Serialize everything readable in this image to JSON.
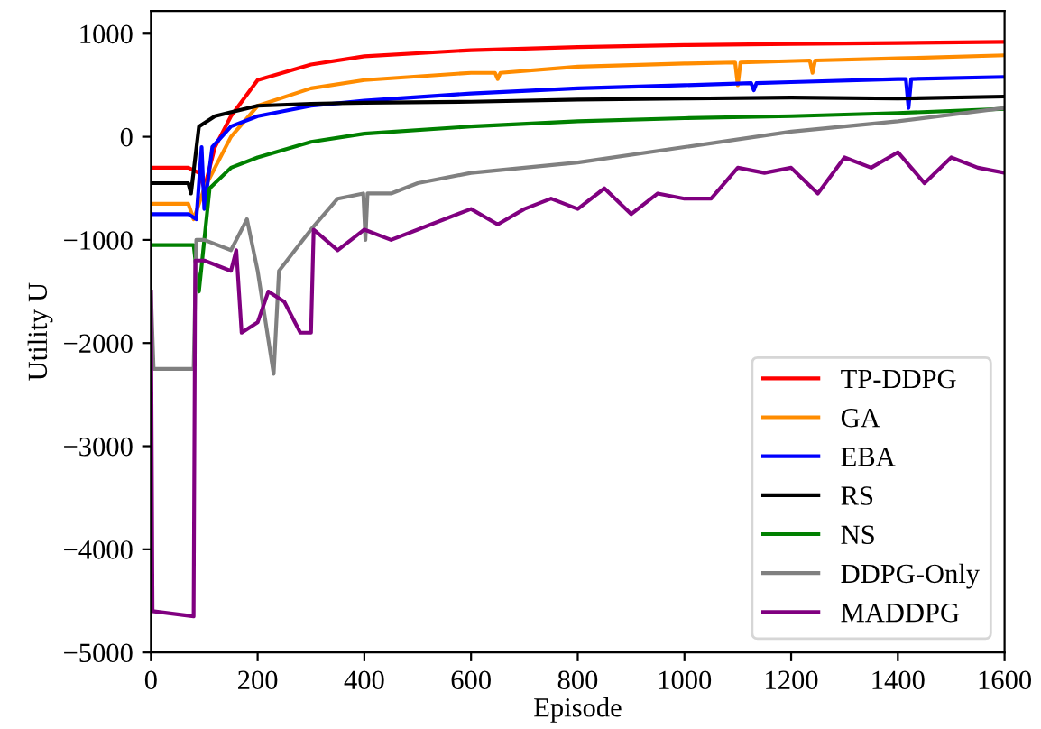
{
  "chart_data": {
    "type": "line",
    "xlabel": "Episode",
    "ylabel": "Utility U",
    "xlim": [
      0,
      1600
    ],
    "ylim": [
      -5000,
      1220
    ],
    "xticks": [
      0,
      200,
      400,
      600,
      800,
      1000,
      1200,
      1400,
      1600
    ],
    "yticks": [
      {
        "value": -5000,
        "label": "−5000"
      },
      {
        "value": -4000,
        "label": "−4000"
      },
      {
        "value": -3000,
        "label": "−3000"
      },
      {
        "value": -2000,
        "label": "−2000"
      },
      {
        "value": -1000,
        "label": "−1000"
      },
      0,
      1000
    ],
    "grid": false,
    "legend": "bottom right",
    "marker": "none",
    "line_style": "solid",
    "series": [
      {
        "name": "TP-DDPG",
        "color": "#ff0000",
        "x": [
          0,
          70,
          90,
          100,
          120,
          150,
          200,
          300,
          400,
          600,
          800,
          1000,
          1200,
          1400,
          1600
        ],
        "values": [
          -300,
          -300,
          -350,
          -500,
          -100,
          200,
          550,
          700,
          780,
          840,
          870,
          890,
          900,
          910,
          920
        ]
      },
      {
        "name": "GA",
        "color": "#ff8c00",
        "x": [
          0,
          70,
          80,
          100,
          150,
          200,
          300,
          400,
          600,
          645,
          650,
          655,
          800,
          1000,
          1095,
          1100,
          1105,
          1235,
          1240,
          1245,
          1400,
          1600
        ],
        "values": [
          -650,
          -650,
          -800,
          -500,
          0,
          300,
          470,
          550,
          620,
          620,
          560,
          620,
          680,
          710,
          720,
          500,
          720,
          740,
          620,
          740,
          760,
          790
        ]
      },
      {
        "name": "EBA",
        "color": "#0000ff",
        "x": [
          0,
          70,
          85,
          95,
          100,
          115,
          150,
          200,
          300,
          400,
          600,
          800,
          1000,
          1125,
          1130,
          1135,
          1200,
          1400,
          1415,
          1420,
          1425,
          1600
        ],
        "values": [
          -750,
          -750,
          -800,
          -100,
          -700,
          -100,
          100,
          200,
          300,
          350,
          420,
          470,
          500,
          520,
          450,
          520,
          530,
          560,
          560,
          280,
          560,
          580
        ]
      },
      {
        "name": "RS",
        "color": "#000000",
        "x": [
          0,
          70,
          75,
          90,
          120,
          200,
          300,
          400,
          600,
          800,
          1000,
          1200,
          1400,
          1600
        ],
        "values": [
          -450,
          -450,
          -550,
          100,
          200,
          300,
          320,
          330,
          340,
          360,
          370,
          380,
          370,
          390
        ]
      },
      {
        "name": "NS",
        "color": "#008000",
        "x": [
          0,
          70,
          80,
          90,
          110,
          150,
          200,
          300,
          400,
          600,
          800,
          1000,
          1200,
          1400,
          1600
        ],
        "values": [
          -1050,
          -1050,
          -1050,
          -1500,
          -500,
          -300,
          -200,
          -50,
          30,
          100,
          150,
          180,
          200,
          230,
          270
        ]
      },
      {
        "name": "DDPG-Only",
        "color": "#808080",
        "x": [
          0,
          5,
          80,
          85,
          100,
          150,
          180,
          200,
          230,
          240,
          270,
          300,
          350,
          398,
          402,
          406,
          450,
          500,
          600,
          800,
          1000,
          1200,
          1400,
          1600
        ],
        "values": [
          -1500,
          -2250,
          -2250,
          -1000,
          -1000,
          -1100,
          -800,
          -1300,
          -2300,
          -1300,
          -1100,
          -900,
          -600,
          -550,
          -1000,
          -550,
          -550,
          -450,
          -350,
          -250,
          -100,
          50,
          150,
          280
        ]
      },
      {
        "name": "MADDPG",
        "color": "#800080",
        "x": [
          0,
          3,
          80,
          83,
          100,
          150,
          160,
          170,
          200,
          220,
          250,
          280,
          300,
          305,
          350,
          400,
          450,
          500,
          550,
          600,
          650,
          700,
          750,
          800,
          850,
          900,
          950,
          1000,
          1050,
          1100,
          1150,
          1200,
          1250,
          1300,
          1350,
          1400,
          1450,
          1500,
          1550,
          1600
        ],
        "values": [
          -1500,
          -4600,
          -4650,
          -1200,
          -1200,
          -1300,
          -1100,
          -1900,
          -1800,
          -1500,
          -1600,
          -1900,
          -1900,
          -900,
          -1100,
          -900,
          -1000,
          -900,
          -800,
          -700,
          -850,
          -700,
          -600,
          -700,
          -500,
          -750,
          -550,
          -600,
          -600,
          -300,
          -350,
          -300,
          -550,
          -200,
          -300,
          -150,
          -450,
          -200,
          -300,
          -350
        ]
      }
    ]
  }
}
